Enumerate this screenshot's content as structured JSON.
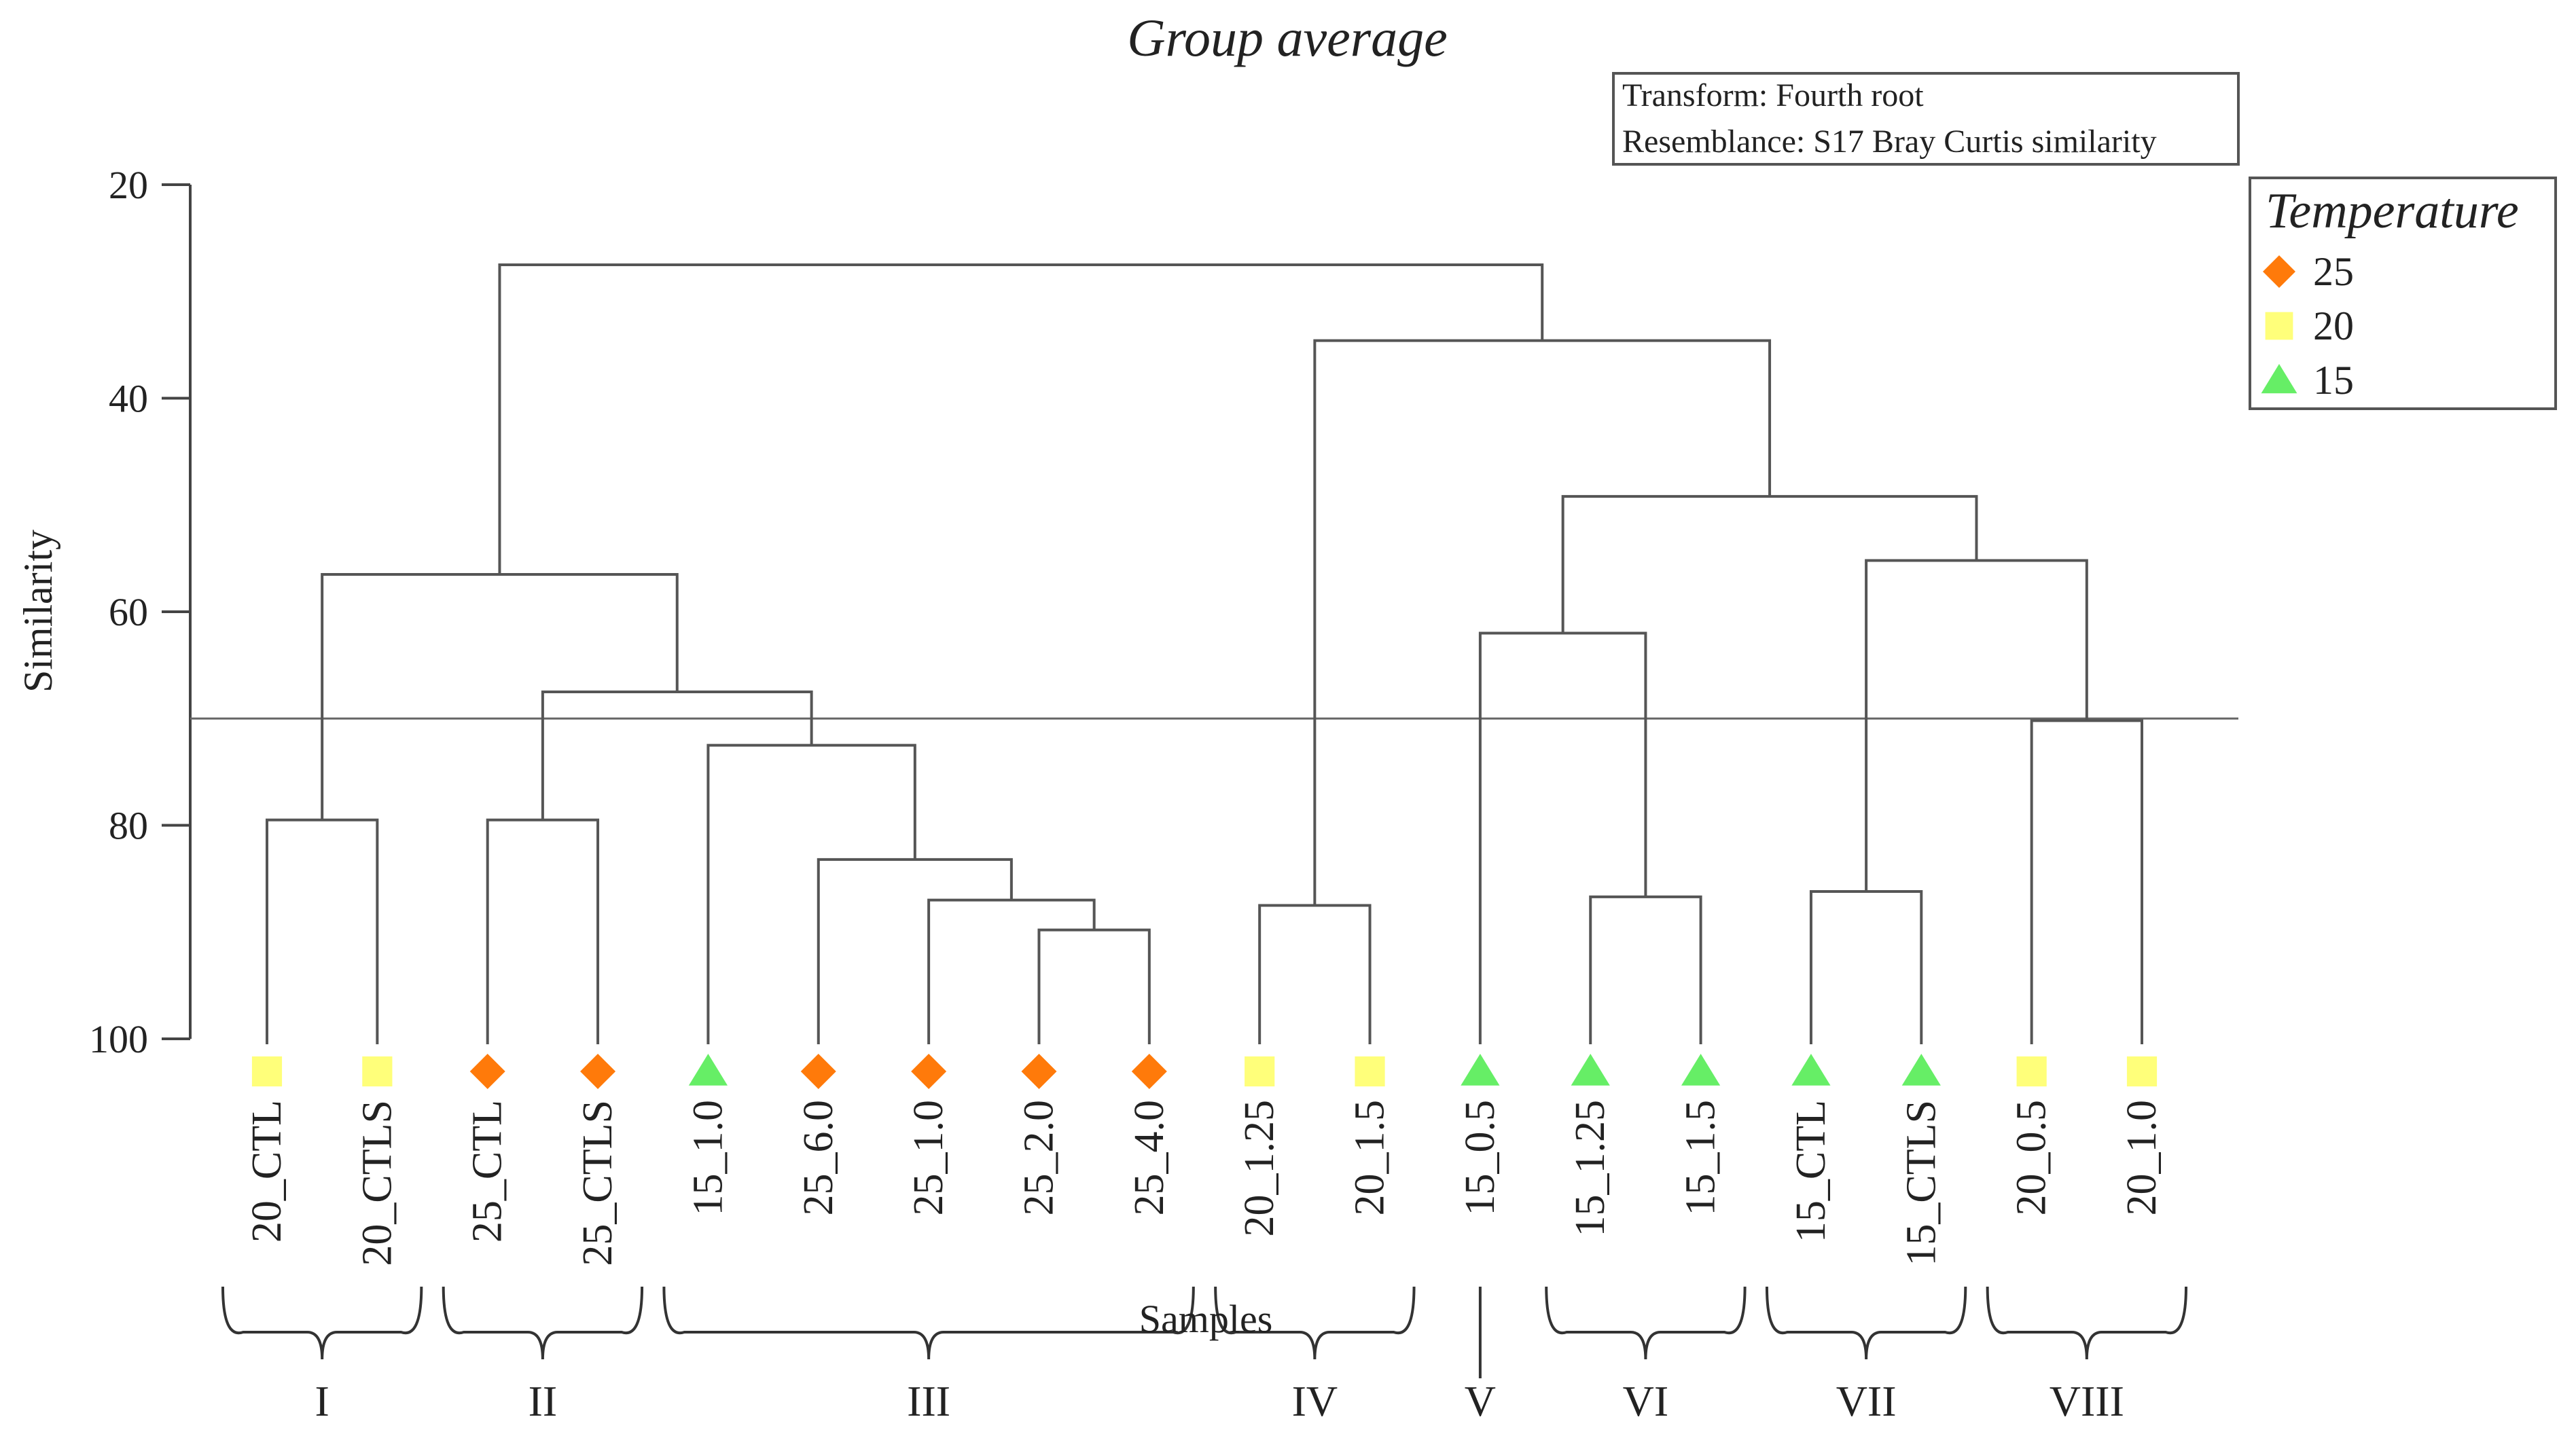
{
  "chart_data": {
    "type": "dendrogram",
    "title": "Group average",
    "notes": [
      "Transform: Fourth root",
      "Resemblance: S17 Bray Curtis similarity"
    ],
    "xlabel": "Samples",
    "ylabel": "Similarity",
    "ylim": [
      20,
      100
    ],
    "yticks": [
      "20",
      "40",
      "60",
      "80",
      "100"
    ],
    "cut_line": 70,
    "legend": {
      "title": "Temperature",
      "items": [
        {
          "label": "25",
          "marker": "diamond",
          "color": "#ff7a0a"
        },
        {
          "label": "20",
          "marker": "square",
          "color": "#ffff7a"
        },
        {
          "label": "15",
          "marker": "triangle",
          "color": "#66ee66"
        }
      ]
    },
    "leaves": [
      {
        "label": "20_CTL",
        "temp": "20"
      },
      {
        "label": "20_CTLS",
        "temp": "20"
      },
      {
        "label": "25_CTL",
        "temp": "25"
      },
      {
        "label": "25_CTLS",
        "temp": "25"
      },
      {
        "label": "15_1.0",
        "temp": "15"
      },
      {
        "label": "25_6.0",
        "temp": "25"
      },
      {
        "label": "25_1.0",
        "temp": "25"
      },
      {
        "label": "25_2.0",
        "temp": "25"
      },
      {
        "label": "25_4.0",
        "temp": "25"
      },
      {
        "label": "20_1.25",
        "temp": "20"
      },
      {
        "label": "20_1.5",
        "temp": "20"
      },
      {
        "label": "15_0.5",
        "temp": "15"
      },
      {
        "label": "15_1.25",
        "temp": "15"
      },
      {
        "label": "15_1.5",
        "temp": "15"
      },
      {
        "label": "15_CTL",
        "temp": "15"
      },
      {
        "label": "15_CTLS",
        "temp": "15"
      },
      {
        "label": "20_0.5",
        "temp": "20"
      },
      {
        "label": "20_1.0",
        "temp": "20"
      }
    ],
    "merges": [
      {
        "id": "m1",
        "left": "L0",
        "right": "L1",
        "height": 79.5
      },
      {
        "id": "m2",
        "left": "L2",
        "right": "L3",
        "height": 79.5
      },
      {
        "id": "m3",
        "left": "L7",
        "right": "L8",
        "height": 89.8
      },
      {
        "id": "m4",
        "left": "L6",
        "right": "m3",
        "height": 87.0
      },
      {
        "id": "m5",
        "left": "L5",
        "right": "m4",
        "height": 83.2
      },
      {
        "id": "m6",
        "left": "L4",
        "right": "m5",
        "height": 72.5
      },
      {
        "id": "m7",
        "left": "m2",
        "right": "m6",
        "height": 67.5
      },
      {
        "id": "m8",
        "left": "m1",
        "right": "m7",
        "height": 56.5
      },
      {
        "id": "m9",
        "left": "L9",
        "right": "L10",
        "height": 87.5
      },
      {
        "id": "m10",
        "left": "L12",
        "right": "L13",
        "height": 86.7
      },
      {
        "id": "m11",
        "left": "L11",
        "right": "m10",
        "height": 62.0
      },
      {
        "id": "m12",
        "left": "L14",
        "right": "L15",
        "height": 86.2
      },
      {
        "id": "m13",
        "left": "L16",
        "right": "L17",
        "height": 70.2
      },
      {
        "id": "m14",
        "left": "m12",
        "right": "m13",
        "height": 55.2
      },
      {
        "id": "m15",
        "left": "m11",
        "right": "m14",
        "height": 49.2
      },
      {
        "id": "m16",
        "left": "m9",
        "right": "m15",
        "height": 34.6
      },
      {
        "id": "m17",
        "left": "m8",
        "right": "m16",
        "height": 27.5
      }
    ],
    "groups": [
      {
        "label": "I",
        "first": 0,
        "last": 1
      },
      {
        "label": "II",
        "first": 2,
        "last": 3
      },
      {
        "label": "III",
        "first": 4,
        "last": 8
      },
      {
        "label": "IV",
        "first": 9,
        "last": 10
      },
      {
        "label": "V",
        "first": 11,
        "last": 11
      },
      {
        "label": "VI",
        "first": 12,
        "last": 13
      },
      {
        "label": "VII",
        "first": 14,
        "last": 15
      },
      {
        "label": "VIII",
        "first": 16,
        "last": 17
      }
    ]
  }
}
